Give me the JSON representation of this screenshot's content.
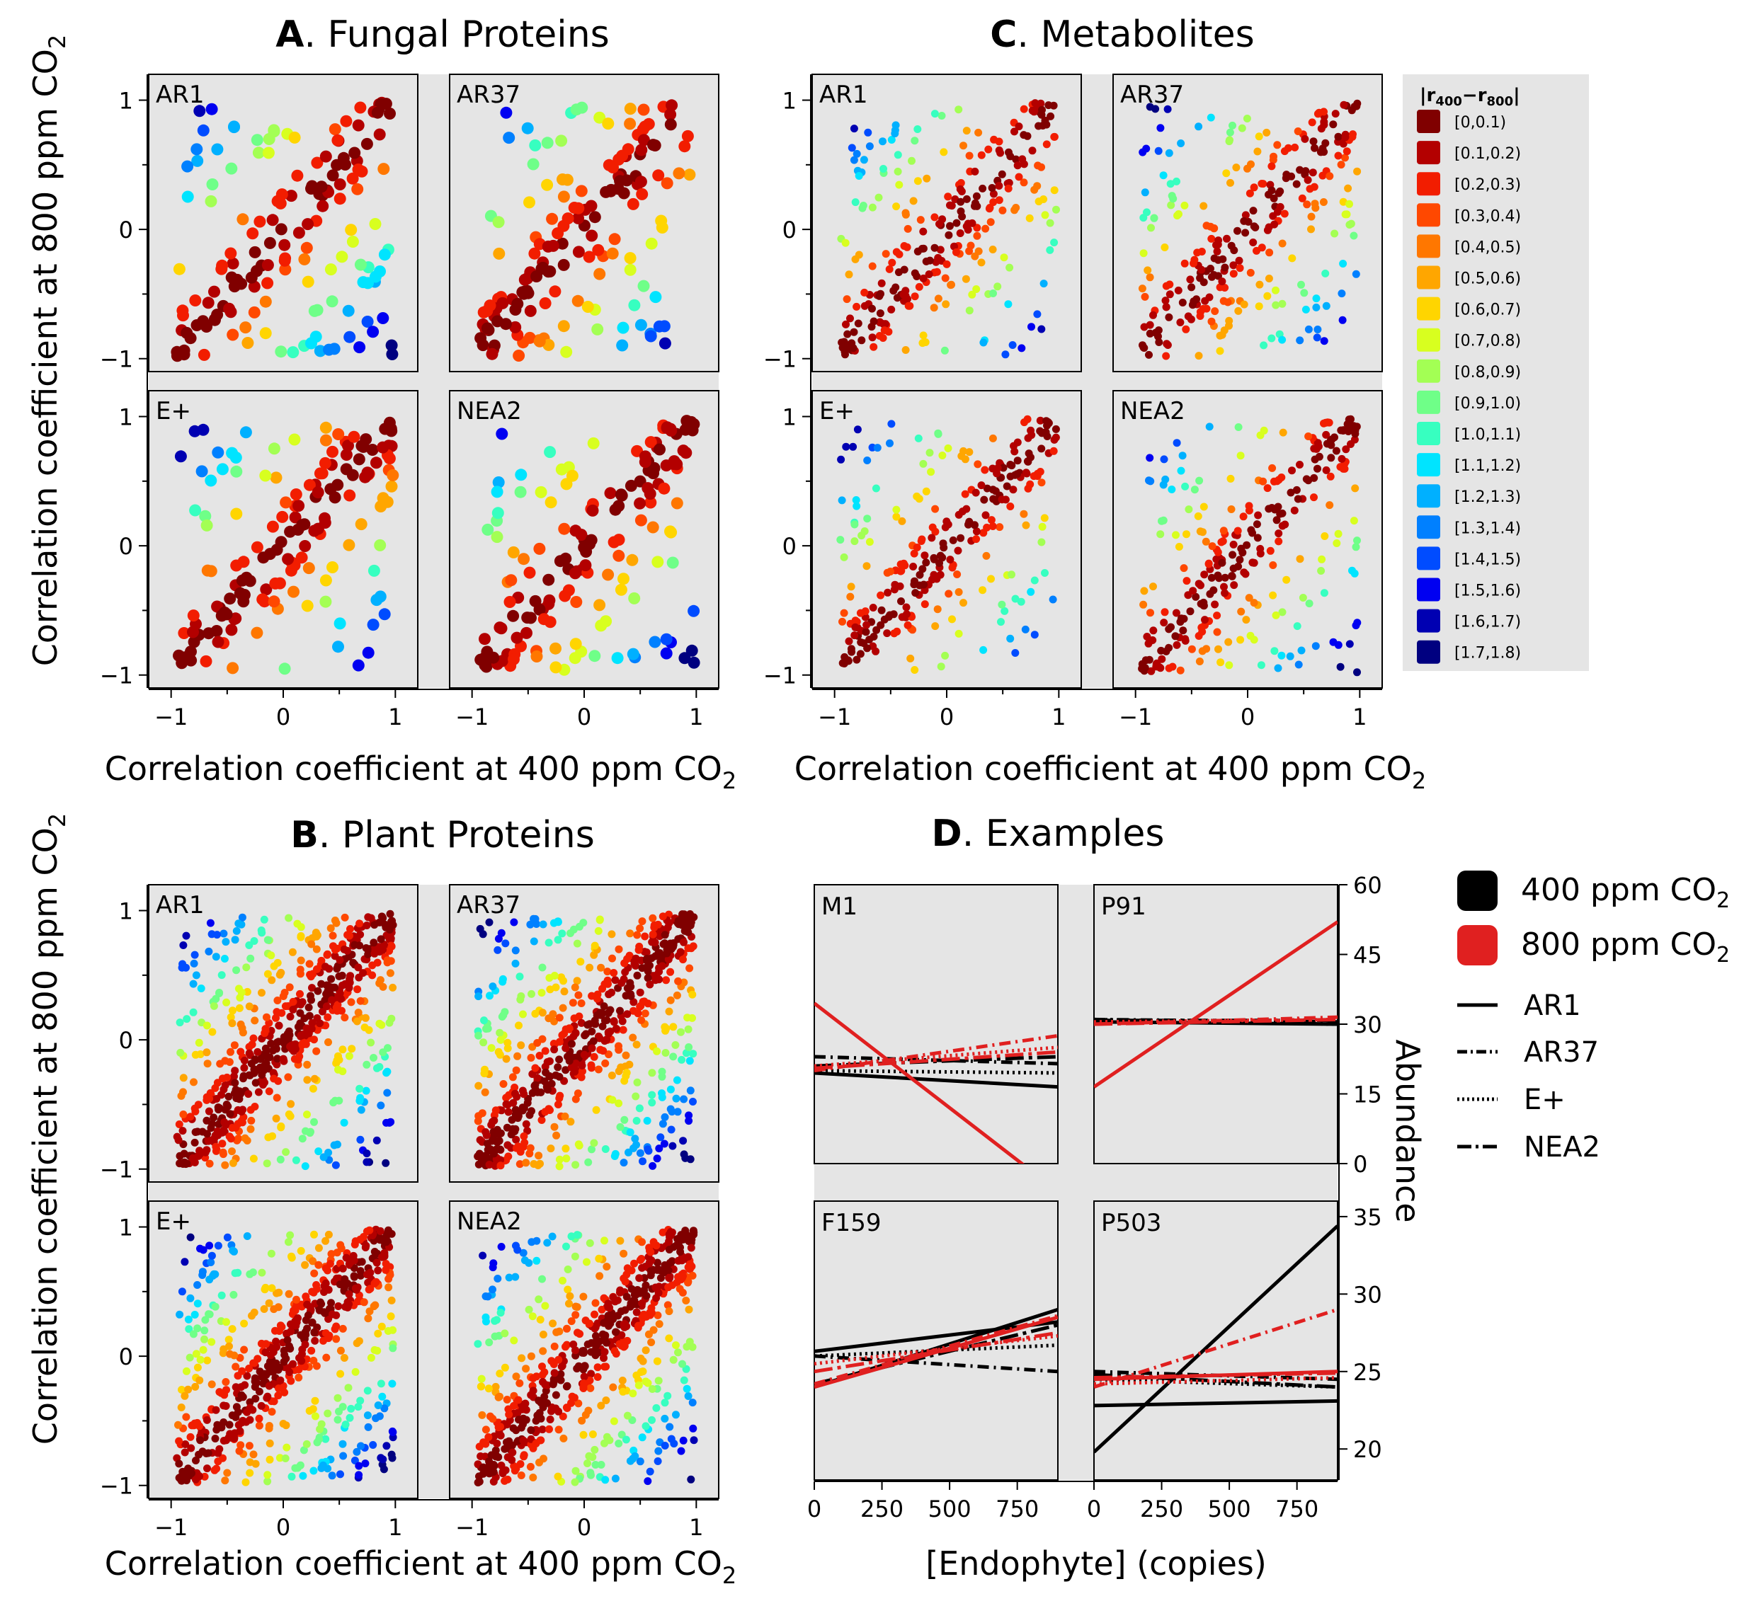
{
  "figure": {
    "panels": {
      "A": {
        "letter": "A",
        "rest": ". Fungal Proteins"
      },
      "B": {
        "letter": "B",
        "rest": ". Plant Proteins"
      },
      "C": {
        "letter": "C",
        "rest": ". Metabolites"
      },
      "D": {
        "letter": "D",
        "rest": ". Examples"
      }
    },
    "x_label": {
      "main": "Correlation coefficient at 400 ppm CO",
      "sub": "2"
    },
    "y_label": {
      "main": "Correlation coefficient at 800 ppm CO",
      "sub": "2"
    },
    "d_x_label": "[Endophyte] (copies)",
    "d_y_label": "Abundance",
    "colors": {
      "panel_bg": "#e5e5e5",
      "black_line": "#000000",
      "red_line": "#e02020"
    }
  },
  "legend_diff": {
    "title_main": "|r",
    "title_sub1": "400",
    "title_dash": "−r",
    "title_sub2": "800",
    "title_end": "|",
    "bins": [
      {
        "label": "[0,0.1)",
        "color": "#800000"
      },
      {
        "label": "[0.1,0.2)",
        "color": "#b30000"
      },
      {
        "label": "[0.2,0.3)",
        "color": "#f21d00"
      },
      {
        "label": "[0.3,0.4)",
        "color": "#ff4800"
      },
      {
        "label": "[0.4,0.5)",
        "color": "#ff7700"
      },
      {
        "label": "[0.5,0.6)",
        "color": "#ffa600"
      },
      {
        "label": "[0.6,0.7)",
        "color": "#ffd500"
      },
      {
        "label": "[0.7,0.8)",
        "color": "#d8ff1f"
      },
      {
        "label": "[0.8,0.9)",
        "color": "#a3ff54"
      },
      {
        "label": "[0.9,1.0)",
        "color": "#6fff88"
      },
      {
        "label": "[1.0,1.1)",
        "color": "#37ffc0"
      },
      {
        "label": "[1.1,1.2)",
        "color": "#00e4ff"
      },
      {
        "label": "[1.2,1.3)",
        "color": "#00b0ff"
      },
      {
        "label": "[1.3,1.4)",
        "color": "#0080ff"
      },
      {
        "label": "[1.4,1.5)",
        "color": "#004cff"
      },
      {
        "label": "[1.5,1.6)",
        "color": "#0000f1"
      },
      {
        "label": "[1.6,1.7)",
        "color": "#0000b2"
      },
      {
        "label": "[1.7,1.8)",
        "color": "#000080"
      }
    ]
  },
  "legend_examples": {
    "co2": [
      {
        "main": "400 ppm CO",
        "sub": "2",
        "color": "#000000"
      },
      {
        "main": "800 ppm CO",
        "sub": "2",
        "color": "#e02020"
      }
    ],
    "lines": [
      {
        "label": "AR1",
        "style": "solid"
      },
      {
        "label": "AR37",
        "style": "dashdot"
      },
      {
        "label": "E+",
        "style": "dotted"
      },
      {
        "label": "NEA2",
        "style": "longdashdot"
      }
    ]
  },
  "chart_data": [
    {
      "panel": "A",
      "title": "Fungal Proteins",
      "type": "scatter",
      "xlabel": "Correlation coefficient at 400 ppm CO2",
      "ylabel": "Correlation coefficient at 800 ppm CO2",
      "xlim": [
        -1.2,
        1.2
      ],
      "ylim": [
        -1.1,
        1.2
      ],
      "xticks": [
        -1,
        0,
        1
      ],
      "yticks": [
        -1,
        0,
        1
      ],
      "color_by": "|r400 - r800|",
      "facets": [
        {
          "name": "AR1",
          "n": 160
        },
        {
          "name": "AR37",
          "n": 160
        },
        {
          "name": "E+",
          "n": 160
        },
        {
          "name": "NEA2",
          "n": 160
        }
      ],
      "marker": "large"
    },
    {
      "panel": "C",
      "title": "Metabolites",
      "type": "scatter",
      "xlabel": "Correlation coefficient at 400 ppm CO2",
      "xlim": [
        -1.2,
        1.2
      ],
      "ylim": [
        -1.1,
        1.2
      ],
      "xticks": [
        -1,
        0,
        1
      ],
      "yticks": [
        -1,
        0,
        1
      ],
      "color_by": "|r400 - r800|",
      "facets": [
        {
          "name": "AR1",
          "n": 280
        },
        {
          "name": "AR37",
          "n": 280
        },
        {
          "name": "E+",
          "n": 280
        },
        {
          "name": "NEA2",
          "n": 280
        }
      ],
      "marker": "small"
    },
    {
      "panel": "B",
      "title": "Plant Proteins",
      "type": "scatter",
      "xlabel": "Correlation coefficient at 400 ppm CO2",
      "ylabel": "Correlation coefficient at 800 ppm CO2",
      "xlim": [
        -1.2,
        1.2
      ],
      "ylim": [
        -1.1,
        1.2
      ],
      "xticks": [
        -1,
        0,
        1
      ],
      "yticks": [
        -1,
        0,
        1
      ],
      "color_by": "|r400 - r800|",
      "facets": [
        {
          "name": "AR1",
          "n": 620
        },
        {
          "name": "AR37",
          "n": 620
        },
        {
          "name": "E+",
          "n": 620
        },
        {
          "name": "NEA2",
          "n": 620
        }
      ],
      "marker": "small"
    },
    {
      "panel": "D",
      "title": "Examples",
      "type": "line",
      "xlabel": "[Endophyte] (copies)",
      "ylabel": "Abundance",
      "xlim": [
        0,
        900
      ],
      "xticks": [
        0,
        250,
        500,
        750
      ],
      "facets": [
        {
          "name": "M1",
          "ylim": [
            0,
            60
          ],
          "yticks": [
            0,
            15,
            30,
            45,
            60
          ],
          "lines": [
            {
              "co2": "400",
              "genotype": "AR1",
              "y0": 19.5,
              "y1": 16.5
            },
            {
              "co2": "400",
              "genotype": "AR37",
              "y0": 23.0,
              "y1": 21.5
            },
            {
              "co2": "400",
              "genotype": "E+",
              "y0": 20.0,
              "y1": 19.5
            },
            {
              "co2": "400",
              "genotype": "NEA2",
              "y0": 21.0,
              "y1": 23.0
            },
            {
              "co2": "800",
              "genotype": "AR1",
              "y0": 34.5,
              "y1": -6.0
            },
            {
              "co2": "800",
              "genotype": "AR37",
              "y0": 20.0,
              "y1": 27.5
            },
            {
              "co2": "800",
              "genotype": "E+",
              "y0": 21.0,
              "y1": 25.0
            },
            {
              "co2": "800",
              "genotype": "NEA2",
              "y0": 20.5,
              "y1": 24.0
            }
          ]
        },
        {
          "name": "P91",
          "ylim": [
            0,
            60
          ],
          "yticks": [
            0,
            15,
            30,
            45,
            60
          ],
          "lines": [
            {
              "co2": "400",
              "genotype": "AR1",
              "y0": 30.5,
              "y1": 30.0
            },
            {
              "co2": "400",
              "genotype": "AR37",
              "y0": 31.0,
              "y1": 30.5
            },
            {
              "co2": "400",
              "genotype": "E+",
              "y0": 31.0,
              "y1": 30.0
            },
            {
              "co2": "400",
              "genotype": "NEA2",
              "y0": 30.8,
              "y1": 30.8
            },
            {
              "co2": "800",
              "genotype": "AR1",
              "y0": 16.5,
              "y1": 52.0
            },
            {
              "co2": "800",
              "genotype": "AR37",
              "y0": 30.0,
              "y1": 31.5
            },
            {
              "co2": "800",
              "genotype": "E+",
              "y0": 30.5,
              "y1": 31.0
            },
            {
              "co2": "800",
              "genotype": "NEA2",
              "y0": 30.0,
              "y1": 31.0
            }
          ]
        },
        {
          "name": "F159",
          "ylim": [
            18,
            36
          ],
          "yticks": [
            20,
            25,
            30,
            35
          ],
          "lines": [
            {
              "co2": "400",
              "genotype": "AR1",
              "y0": 24.0,
              "y1": 29.0
            },
            {
              "co2": "400",
              "genotype": "AR1",
              "y0": 26.3,
              "y1": 28.2
            },
            {
              "co2": "400",
              "genotype": "AR37",
              "y0": 26.0,
              "y1": 25.0
            },
            {
              "co2": "400",
              "genotype": "E+",
              "y0": 26.0,
              "y1": 26.7
            },
            {
              "co2": "400",
              "genotype": "NEA2",
              "y0": 24.2,
              "y1": 28.0
            },
            {
              "co2": "800",
              "genotype": "AR1",
              "y0": 24.0,
              "y1": 28.5
            },
            {
              "co2": "800",
              "genotype": "AR37",
              "y0": 24.2,
              "y1": 28.6
            },
            {
              "co2": "800",
              "genotype": "E+",
              "y0": 25.5,
              "y1": 27.3
            },
            {
              "co2": "800",
              "genotype": "NEA2",
              "y0": 25.0,
              "y1": 27.5
            }
          ]
        },
        {
          "name": "P503",
          "ylim": [
            18,
            36
          ],
          "yticks": [
            20,
            25,
            30,
            35
          ],
          "lines": [
            {
              "co2": "400",
              "genotype": "AR1",
              "y0": 19.8,
              "y1": 34.4
            },
            {
              "co2": "400",
              "genotype": "AR1",
              "y0": 22.8,
              "y1": 23.1
            },
            {
              "co2": "400",
              "genotype": "AR37",
              "y0": 25.0,
              "y1": 24.5
            },
            {
              "co2": "400",
              "genotype": "E+",
              "y0": 24.5,
              "y1": 24.0
            },
            {
              "co2": "400",
              "genotype": "NEA2",
              "y0": 24.8,
              "y1": 24.0
            },
            {
              "co2": "800",
              "genotype": "AR1",
              "y0": 24.5,
              "y1": 25.0
            },
            {
              "co2": "800",
              "genotype": "AR37",
              "y0": 24.0,
              "y1": 29.0
            },
            {
              "co2": "800",
              "genotype": "E+",
              "y0": 24.2,
              "y1": 24.6
            },
            {
              "co2": "800",
              "genotype": "NEA2",
              "y0": 24.6,
              "y1": 24.9
            }
          ]
        }
      ]
    }
  ]
}
